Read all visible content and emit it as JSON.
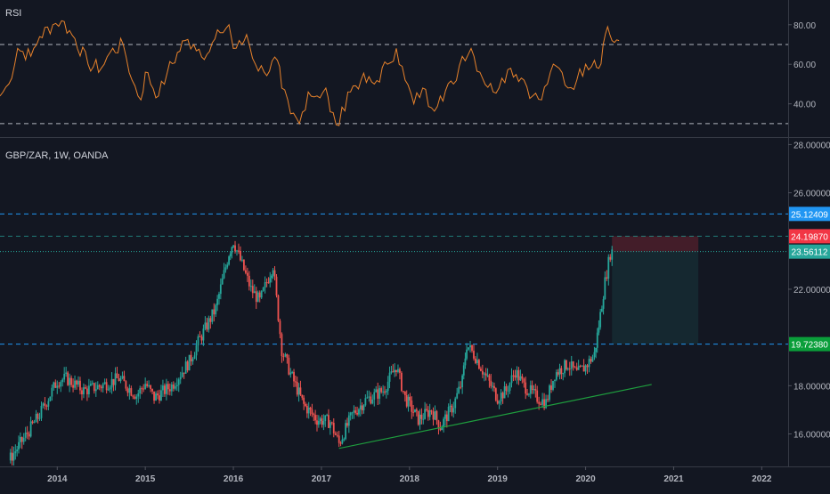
{
  "rsi_pane": {
    "label": "RSI",
    "y_ticks": [
      "80.00",
      "60.00",
      "40.00"
    ],
    "levels": [
      70,
      30
    ],
    "ylim": [
      25,
      88
    ],
    "line_color": "#e8822b"
  },
  "price_pane": {
    "label": "GBP/ZAR, 1W, OANDA",
    "y_ticks": [
      "28.00000",
      "26.00000",
      "22.00000",
      "18.00000",
      "16.00000"
    ],
    "ylim": [
      14.8,
      28.2
    ],
    "badges": [
      {
        "text": "25.12409",
        "value": 25.12409,
        "color": "#2196f3"
      },
      {
        "text": "24.19870",
        "value": 24.1987,
        "color": "#f23645"
      },
      {
        "text": "23.56112",
        "value": 23.56112,
        "color": "#26a69a"
      },
      {
        "text": "19.72380",
        "value": 19.7238,
        "color": "#0a9e3a"
      }
    ],
    "colors": {
      "up": "#26a69a",
      "down": "#ef5350",
      "trendline": "#1e9e3e"
    }
  },
  "x_axis": {
    "ticks": [
      "2014",
      "2015",
      "2016",
      "2017",
      "2018",
      "2019",
      "2020",
      "2021",
      "2022"
    ]
  },
  "chart_data": {
    "type": "candlestick",
    "title": "GBP/ZAR, 1W, OANDA",
    "x_range": [
      2013.35,
      2022.3
    ],
    "price_close_path": [
      [
        2013.45,
        14.9
      ],
      [
        2013.6,
        15.7
      ],
      [
        2013.8,
        16.8
      ],
      [
        2014.0,
        18.2
      ],
      [
        2014.1,
        18.3
      ],
      [
        2014.3,
        17.8
      ],
      [
        2014.5,
        18.0
      ],
      [
        2014.7,
        18.3
      ],
      [
        2014.9,
        17.6
      ],
      [
        2015.0,
        18.1
      ],
      [
        2015.1,
        17.5
      ],
      [
        2015.3,
        18.0
      ],
      [
        2015.5,
        19.0
      ],
      [
        2015.6,
        19.8
      ],
      [
        2015.8,
        21.2
      ],
      [
        2015.95,
        23.5
      ],
      [
        2016.0,
        24.0
      ],
      [
        2016.1,
        23.0
      ],
      [
        2016.2,
        22.0
      ],
      [
        2016.3,
        21.5
      ],
      [
        2016.4,
        22.5
      ],
      [
        2016.45,
        23.0
      ],
      [
        2016.55,
        19.5
      ],
      [
        2016.65,
        18.5
      ],
      [
        2016.8,
        17.2
      ],
      [
        2016.95,
        16.6
      ],
      [
        2017.1,
        16.5
      ],
      [
        2017.2,
        15.6
      ],
      [
        2017.35,
        16.8
      ],
      [
        2017.5,
        17.4
      ],
      [
        2017.7,
        17.8
      ],
      [
        2017.85,
        18.8
      ],
      [
        2017.95,
        17.5
      ],
      [
        2018.1,
        16.6
      ],
      [
        2018.25,
        17.0
      ],
      [
        2018.35,
        16.3
      ],
      [
        2018.5,
        17.2
      ],
      [
        2018.6,
        18.2
      ],
      [
        2018.65,
        19.7
      ],
      [
        2018.75,
        19.2
      ],
      [
        2018.85,
        18.5
      ],
      [
        2019.0,
        17.5
      ],
      [
        2019.1,
        17.8
      ],
      [
        2019.2,
        18.6
      ],
      [
        2019.3,
        18.0
      ],
      [
        2019.45,
        17.5
      ],
      [
        2019.55,
        17.3
      ],
      [
        2019.65,
        18.5
      ],
      [
        2019.8,
        18.9
      ],
      [
        2019.9,
        18.5
      ],
      [
        2020.0,
        18.8
      ],
      [
        2020.1,
        19.3
      ],
      [
        2020.15,
        20.5
      ],
      [
        2020.22,
        22.3
      ],
      [
        2020.28,
        23.5
      ],
      [
        2020.3,
        23.56
      ]
    ],
    "rsi_path": [
      [
        2013.35,
        44
      ],
      [
        2013.45,
        50
      ],
      [
        2013.55,
        68
      ],
      [
        2013.7,
        64
      ],
      [
        2013.8,
        74
      ],
      [
        2013.95,
        80
      ],
      [
        2014.05,
        82
      ],
      [
        2014.2,
        73
      ],
      [
        2014.35,
        60
      ],
      [
        2014.5,
        58
      ],
      [
        2014.6,
        66
      ],
      [
        2014.75,
        70
      ],
      [
        2014.85,
        52
      ],
      [
        2014.95,
        42
      ],
      [
        2015.0,
        56
      ],
      [
        2015.15,
        44
      ],
      [
        2015.25,
        56
      ],
      [
        2015.45,
        72
      ],
      [
        2015.55,
        70
      ],
      [
        2015.7,
        65
      ],
      [
        2015.85,
        76
      ],
      [
        2015.95,
        80
      ],
      [
        2016.0,
        68
      ],
      [
        2016.1,
        70
      ],
      [
        2016.15,
        75
      ],
      [
        2016.25,
        60
      ],
      [
        2016.35,
        56
      ],
      [
        2016.5,
        62
      ],
      [
        2016.55,
        48
      ],
      [
        2016.65,
        35
      ],
      [
        2016.75,
        30
      ],
      [
        2016.85,
        46
      ],
      [
        2016.95,
        44
      ],
      [
        2017.05,
        48
      ],
      [
        2017.1,
        36
      ],
      [
        2017.2,
        29
      ],
      [
        2017.3,
        46
      ],
      [
        2017.45,
        52
      ],
      [
        2017.6,
        50
      ],
      [
        2017.75,
        60
      ],
      [
        2017.85,
        68
      ],
      [
        2017.95,
        52
      ],
      [
        2018.05,
        40
      ],
      [
        2018.15,
        48
      ],
      [
        2018.25,
        38
      ],
      [
        2018.35,
        44
      ],
      [
        2018.5,
        50
      ],
      [
        2018.6,
        64
      ],
      [
        2018.7,
        68
      ],
      [
        2018.8,
        56
      ],
      [
        2018.95,
        46
      ],
      [
        2019.05,
        53
      ],
      [
        2019.15,
        58
      ],
      [
        2019.3,
        52
      ],
      [
        2019.4,
        44
      ],
      [
        2019.5,
        42
      ],
      [
        2019.6,
        56
      ],
      [
        2019.7,
        58
      ],
      [
        2019.8,
        48
      ],
      [
        2019.9,
        52
      ],
      [
        2020.0,
        60
      ],
      [
        2020.1,
        62
      ],
      [
        2020.15,
        58
      ],
      [
        2020.2,
        70
      ],
      [
        2020.25,
        79
      ],
      [
        2020.3,
        72
      ],
      [
        2020.38,
        72
      ]
    ],
    "trendline": {
      "from": [
        2017.2,
        15.4
      ],
      "to": [
        2020.75,
        18.05
      ]
    },
    "position_tool": {
      "x_from": 2020.3,
      "x_to": 2021.28,
      "entry": 23.56112,
      "stop": 24.1987,
      "target": 19.7238
    },
    "series": [
      {
        "name": "GBP/ZAR, 1W, OANDA"
      },
      {
        "name": "RSI"
      }
    ]
  }
}
